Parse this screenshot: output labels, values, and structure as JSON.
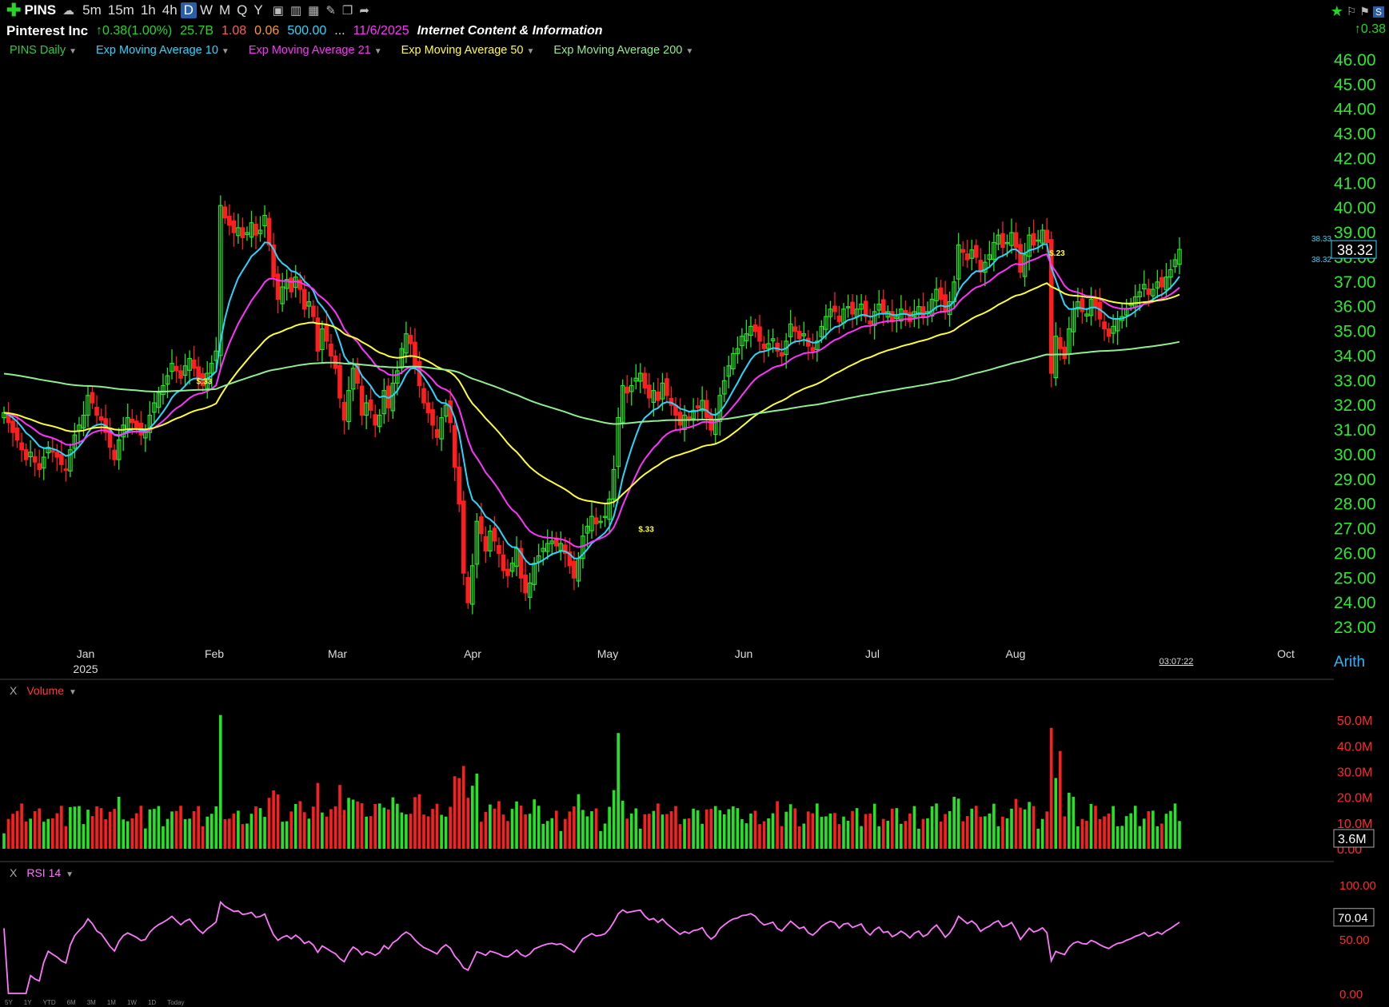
{
  "toolbar": {
    "symbol": "PINS",
    "timeframes": [
      "5m",
      "15m",
      "1h",
      "4h",
      "D",
      "W",
      "M",
      "Q",
      "Y"
    ],
    "active_timeframe": "D"
  },
  "info": {
    "name": "Pinterest Inc",
    "change": "0.38(1.00%)",
    "mktcap": "25.7B",
    "v1": "1.08",
    "v2": "0.06",
    "v3": "500.00",
    "ellipsis": "...",
    "date": "11/6/2025",
    "industry": "Internet Content & Information",
    "right_change": "0.38"
  },
  "legend": [
    {
      "label": "PINS Daily",
      "color": "#2ecc40"
    },
    {
      "label": "Exp Moving Average 10",
      "color": "#27d7ff"
    },
    {
      "label": "Exp Moving Average 21",
      "color": "#ff33ff"
    },
    {
      "label": "Exp Moving Average 50",
      "color": "#ffff33"
    },
    {
      "label": "Exp Moving Average 200",
      "color": "#90ee90"
    }
  ],
  "price_axis": {
    "ticks": [
      "46.00",
      "45.00",
      "44.00",
      "43.00",
      "42.00",
      "41.00",
      "40.00",
      "39.00",
      "38.00",
      "37.00",
      "36.00",
      "35.00",
      "34.00",
      "33.00",
      "32.00",
      "31.00",
      "30.00",
      "29.00",
      "28.00",
      "27.00",
      "26.00",
      "25.00",
      "24.00",
      "23.00"
    ],
    "current": "38.32",
    "small_hi": "38.33",
    "small_lo": "38.32",
    "scale": "Arith"
  },
  "time_axis": {
    "months": [
      "Jan",
      "Feb",
      "Mar",
      "Apr",
      "May",
      "Jun",
      "Jul",
      "Aug",
      "Oct"
    ],
    "year": "2025",
    "clock": "03:07:22"
  },
  "volume_panel": {
    "label": "Volume",
    "x": "X",
    "ticks": [
      "50.0M",
      "40.0M",
      "30.0M",
      "20.0M",
      "10.0M",
      "0.00"
    ],
    "current": "3.6M"
  },
  "rsi_panel": {
    "label": "RSI 14",
    "x": "X",
    "ticks": [
      "100.00",
      "50.00",
      "0.00"
    ],
    "current": "70.04"
  },
  "range_buttons": [
    "5Y",
    "1Y",
    "YTD",
    "6M",
    "3M",
    "1M",
    "1W",
    "1D",
    "Today"
  ],
  "markers": [
    "$.33",
    "$.33",
    "$.23"
  ],
  "chart_data": {
    "type": "candlestick",
    "ylim": [
      23,
      46.5
    ],
    "close": [
      31.7,
      31.3,
      30.9,
      30.6,
      30.2,
      29.8,
      30.1,
      29.7,
      29.4,
      29.9,
      30.3,
      30.1,
      29.9,
      29.6,
      29.4,
      30.2,
      30.8,
      31.2,
      31.6,
      32.4,
      32.1,
      31.6,
      31.4,
      30.9,
      30.3,
      29.8,
      30.6,
      31.2,
      31.5,
      31.3,
      31.1,
      30.8,
      30.9,
      31.6,
      32.1,
      32.5,
      32.8,
      33.2,
      33.7,
      33.4,
      33.1,
      33.6,
      33.9,
      33.5,
      33.1,
      32.8,
      33.3,
      33.7,
      34.2,
      40.1,
      39.6,
      39.3,
      39.0,
      39.2,
      38.8,
      39.0,
      39.4,
      38.9,
      39.1,
      39.7,
      38.5,
      37.2,
      36.3,
      36.8,
      37.1,
      36.6,
      37.2,
      36.7,
      35.9,
      36.2,
      35.6,
      34.2,
      35.1,
      34.6,
      34.0,
      33.5,
      32.3,
      31.4,
      32.6,
      33.5,
      32.9,
      31.6,
      32.1,
      31.8,
      31.2,
      31.6,
      32.6,
      31.9,
      32.9,
      33.4,
      34.3,
      34.9,
      34.5,
      33.6,
      32.8,
      32.1,
      31.7,
      31.2,
      30.7,
      31.5,
      32.0,
      31.3,
      29.5,
      28.0,
      25.2,
      24.0,
      25.5,
      27.3,
      26.8,
      26.1,
      26.9,
      26.5,
      26.0,
      25.3,
      25.1,
      25.6,
      26.2,
      25.0,
      24.4,
      24.8,
      25.6,
      25.9,
      26.2,
      26.4,
      26.5,
      26.3,
      26.4,
      26.0,
      25.5,
      25.0,
      25.8,
      26.7,
      27.1,
      27.5,
      27.2,
      27.3,
      27.5,
      28.2,
      29.4,
      31.5,
      32.8,
      32.5,
      32.8,
      33.1,
      33.3,
      32.7,
      32.3,
      32.6,
      32.2,
      32.9,
      32.4,
      32.0,
      31.6,
      31.2,
      31.6,
      31.4,
      31.8,
      31.9,
      32.2,
      31.5,
      31.0,
      31.4,
      32.4,
      33.0,
      33.6,
      34.1,
      34.3,
      34.8,
      34.9,
      35.2,
      35.0,
      34.6,
      34.3,
      34.5,
      34.7,
      34.2,
      34.0,
      34.6,
      35.3,
      35.0,
      34.7,
      34.9,
      34.4,
      34.2,
      34.6,
      35.2,
      35.6,
      35.9,
      35.8,
      35.4,
      35.9,
      36.0,
      35.7,
      35.9,
      36.1,
      35.6,
      35.3,
      35.8,
      36.1,
      35.7,
      35.8,
      35.4,
      35.6,
      35.9,
      35.7,
      35.4,
      35.8,
      36.0,
      35.6,
      35.8,
      36.3,
      36.7,
      36.3,
      35.8,
      36.2,
      37.0,
      38.5,
      38.2,
      37.9,
      38.3,
      38.0,
      37.4,
      37.8,
      38.1,
      38.6,
      38.9,
      38.4,
      38.6,
      39.0,
      38.4,
      37.4,
      38.1,
      38.9,
      38.5,
      38.7,
      39.1,
      38.6,
      33.3,
      34.8,
      34.3,
      33.9,
      35.1,
      35.9,
      36.2,
      35.8,
      35.7,
      36.3,
      36.0,
      35.5,
      35.1,
      34.8,
      35.2,
      35.5,
      35.6,
      35.9,
      36.1,
      36.4,
      36.6,
      36.9,
      36.5,
      36.7,
      37.0,
      36.8,
      37.2,
      37.5,
      37.9,
      38.32
    ],
    "ema10_close_series": "derived",
    "volume_ylim": [
      0,
      55
    ],
    "rsi_ylim": [
      0,
      100
    ]
  }
}
